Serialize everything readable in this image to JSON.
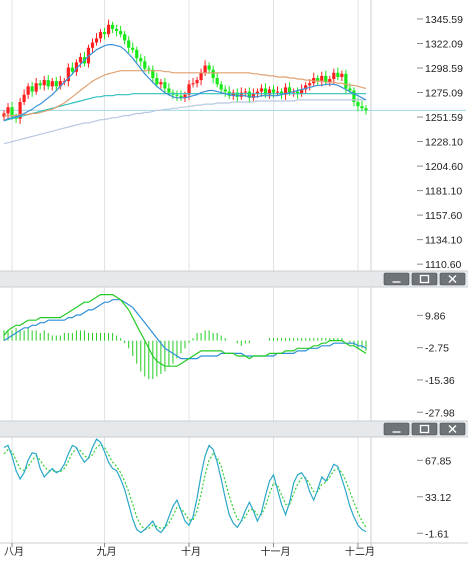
{
  "colors": {
    "up": "#ff1f1f",
    "down": "#18e818",
    "ma_fast": "#3a8fd8",
    "ma_mid": "#e0a070",
    "ma_slow": "#b8c8e0",
    "ma_long": "#30c0c0",
    "macd_dif": "#22cc22",
    "macd_dea": "#2e8fd8",
    "kdj_k": "#2aa8c8",
    "kdj_d": "#30d030",
    "grid": "#dfe3e6",
    "divider": "#c9ced2",
    "titlebar": "#e6e9ec"
  },
  "panel_buttons": [
    "minimize-icon",
    "restore-icon",
    "close-icon"
  ],
  "chart_data": [
    {
      "type": "candlestick",
      "ylim": [
        1105,
        1358
      ],
      "y_ticks": [
        "1345.59",
        "1322.09",
        "1298.59",
        "1275.09",
        "1251.59",
        "1228.10",
        "1204.60",
        "1181.10",
        "1157.60",
        "1134.10",
        "1110.60"
      ],
      "y_tick_values": [
        1345.59,
        1322.09,
        1298.59,
        1275.09,
        1251.59,
        1228.1,
        1204.6,
        1181.1,
        1157.6,
        1134.1,
        1110.6
      ],
      "x_labels": [
        "八月",
        "九月",
        "十月",
        "十一月",
        "十二月"
      ],
      "x_label_index": [
        2,
        25,
        46,
        67,
        88
      ],
      "n": 91,
      "close": [
        1255,
        1261,
        1252,
        1250,
        1266,
        1273,
        1281,
        1276,
        1284,
        1282,
        1287,
        1281,
        1286,
        1281,
        1286,
        1286,
        1299,
        1295,
        1304,
        1309,
        1303,
        1318,
        1323,
        1327,
        1333,
        1331,
        1340,
        1336,
        1334,
        1331,
        1325,
        1318,
        1316,
        1308,
        1305,
        1298,
        1297,
        1289,
        1283,
        1285,
        1279,
        1275,
        1273,
        1272,
        1270,
        1273,
        1283,
        1284,
        1287,
        1294,
        1301,
        1297,
        1289,
        1283,
        1278,
        1276,
        1272,
        1275,
        1271,
        1275,
        1276,
        1270,
        1274,
        1276,
        1279,
        1273,
        1278,
        1275,
        1276,
        1273,
        1280,
        1275,
        1276,
        1274,
        1278,
        1282,
        1284,
        1289,
        1286,
        1291,
        1285,
        1288,
        1294,
        1290,
        1293,
        1279,
        1277,
        1266,
        1262,
        1260,
        1258
      ],
      "ma_fast": [
        1248,
        1250,
        1251,
        1252,
        1253,
        1255,
        1257,
        1259,
        1262,
        1264,
        1267,
        1270,
        1273,
        1277,
        1281,
        1285,
        1289,
        1293,
        1298,
        1302,
        1306,
        1310,
        1313,
        1316,
        1318,
        1320,
        1321,
        1321,
        1320,
        1319,
        1316,
        1312,
        1308,
        1303,
        1298,
        1293,
        1289,
        1285,
        1281,
        1278,
        1275,
        1273,
        1271,
        1270,
        1270,
        1270,
        1271,
        1272,
        1273,
        1275,
        1276,
        1277,
        1277,
        1276,
        1275,
        1274,
        1273,
        1272,
        1272,
        1272,
        1272,
        1271,
        1271,
        1271,
        1272,
        1272,
        1272,
        1272,
        1272,
        1273,
        1274,
        1275,
        1276,
        1277,
        1278,
        1279,
        1280,
        1281,
        1282,
        1282,
        1283,
        1283,
        1283,
        1282,
        1280,
        1278,
        1276,
        1274,
        1272,
        1270,
        1268
      ],
      "ma_mid": [
        1253,
        1253,
        1253,
        1253,
        1254,
        1254,
        1254,
        1255,
        1255,
        1256,
        1257,
        1258,
        1259,
        1261,
        1263,
        1265,
        1268,
        1271,
        1274,
        1277,
        1280,
        1283,
        1286,
        1288,
        1290,
        1292,
        1293,
        1294,
        1295,
        1296,
        1296,
        1296,
        1296,
        1296,
        1296,
        1296,
        1296,
        1296,
        1296,
        1296,
        1295,
        1295,
        1294,
        1294,
        1294,
        1294,
        1294,
        1294,
        1294,
        1294,
        1294,
        1294,
        1294,
        1294,
        1294,
        1294,
        1294,
        1294,
        1294,
        1294,
        1294,
        1294,
        1293,
        1293,
        1292,
        1292,
        1291,
        1291,
        1290,
        1290,
        1290,
        1289,
        1289,
        1288,
        1288,
        1287,
        1287,
        1286,
        1286,
        1286,
        1285,
        1285,
        1285,
        1284,
        1284,
        1283,
        1282,
        1282,
        1281,
        1280,
        1279
      ],
      "ma_slow": [
        1226,
        1227,
        1228,
        1229,
        1230,
        1231,
        1232,
        1233,
        1234,
        1235,
        1236,
        1237,
        1238,
        1239,
        1240,
        1241,
        1242,
        1243,
        1244,
        1245,
        1246,
        1246,
        1247,
        1248,
        1249,
        1249,
        1250,
        1251,
        1251,
        1252,
        1253,
        1253,
        1254,
        1255,
        1255,
        1256,
        1256,
        1257,
        1258,
        1258,
        1259,
        1259,
        1260,
        1260,
        1261,
        1261,
        1262,
        1262,
        1263,
        1263,
        1264,
        1264,
        1264,
        1265,
        1265,
        1265,
        1265,
        1266,
        1266,
        1266,
        1266,
        1266,
        1266,
        1267,
        1267,
        1267,
        1267,
        1267,
        1267,
        1267,
        1267,
        1267,
        1267,
        1268,
        1268,
        1268,
        1268,
        1268,
        1268,
        1268,
        1268,
        1268,
        1268,
        1268,
        1268,
        1268,
        1268,
        1268,
        1268,
        1268,
        1268
      ],
      "ma_long": [
        1248,
        1249,
        1250,
        1251,
        1252,
        1253,
        1254,
        1255,
        1256,
        1257,
        1258,
        1259,
        1260,
        1261,
        1262,
        1263,
        1264,
        1265,
        1266,
        1267,
        1268,
        1269,
        1270,
        1271,
        1271,
        1272,
        1272,
        1272,
        1273,
        1273,
        1273,
        1273,
        1274,
        1274,
        1274,
        1274,
        1274,
        1274,
        1274,
        1274,
        1274,
        1274,
        1274,
        1274,
        1274,
        1274,
        1274,
        1274,
        1274,
        1274,
        1274,
        1274,
        1274,
        1274,
        1274,
        1274,
        1274,
        1274,
        1274,
        1274,
        1274,
        1274,
        1274,
        1274,
        1274,
        1274,
        1274,
        1274,
        1274,
        1274,
        1274,
        1274,
        1274,
        1274,
        1274,
        1274,
        1274,
        1274,
        1274,
        1274,
        1274,
        1274,
        1274,
        1274,
        1274,
        1274,
        1274,
        1274,
        1274,
        1274,
        1274
      ],
      "last_price": 1258
    },
    {
      "type": "macd",
      "ylim": [
        -31,
        19
      ],
      "y_ticks": [
        "9.86",
        "-2.75",
        "-15.36",
        "-27.98"
      ],
      "y_tick_values": [
        9.86,
        -2.75,
        -15.36,
        -27.98
      ],
      "dif": [
        2,
        4,
        5,
        6,
        6,
        7,
        8,
        8,
        8,
        9,
        9,
        9,
        9,
        9,
        9,
        10,
        11,
        12,
        13,
        14,
        15,
        15,
        16,
        17,
        18,
        18,
        18,
        18,
        17,
        16,
        14,
        12,
        9,
        6,
        3,
        0,
        -3,
        -6,
        -8,
        -9,
        -10,
        -10,
        -10,
        -10,
        -9,
        -8,
        -7,
        -6,
        -5,
        -4,
        -4,
        -4,
        -4,
        -4,
        -4,
        -5,
        -5,
        -5,
        -6,
        -6,
        -6,
        -7,
        -6,
        -6,
        -6,
        -6,
        -5,
        -5,
        -5,
        -5,
        -4,
        -4,
        -4,
        -3,
        -3,
        -3,
        -3,
        -2,
        -2,
        -1,
        -1,
        0,
        0,
        0,
        0,
        -1,
        -2,
        -2,
        -3,
        -4,
        -5
      ],
      "dea": [
        0,
        1,
        2,
        3,
        4,
        5,
        5,
        6,
        6,
        7,
        7,
        8,
        8,
        8,
        8,
        8,
        9,
        9,
        10,
        10,
        11,
        12,
        12,
        13,
        14,
        15,
        15,
        16,
        16,
        16,
        15,
        14,
        13,
        11,
        9,
        7,
        5,
        3,
        1,
        -1,
        -3,
        -4,
        -5,
        -6,
        -7,
        -7,
        -7,
        -7,
        -7,
        -6,
        -6,
        -6,
        -6,
        -6,
        -5,
        -5,
        -5,
        -5,
        -5,
        -5,
        -6,
        -6,
        -6,
        -6,
        -6,
        -6,
        -6,
        -6,
        -5,
        -5,
        -5,
        -5,
        -5,
        -4,
        -4,
        -4,
        -3,
        -3,
        -3,
        -2,
        -2,
        -2,
        -1,
        -1,
        -1,
        -1,
        -1,
        -1,
        -2,
        -2,
        -3
      ],
      "hist": [
        4,
        4,
        4,
        5,
        4,
        4,
        5,
        4,
        4,
        3,
        4,
        3,
        2,
        2,
        2,
        3,
        3,
        3,
        4,
        4,
        4,
        3,
        3,
        3,
        3,
        3,
        3,
        3,
        2,
        1,
        -1,
        -3,
        -6,
        -9,
        -12,
        -14,
        -15,
        -15,
        -14,
        -13,
        -12,
        -10,
        -9,
        -7,
        -5,
        -3,
        -1,
        1,
        3,
        3,
        4,
        4,
        3,
        3,
        2,
        1,
        0,
        0,
        -1,
        -2,
        -1,
        -1,
        0,
        0,
        0,
        0,
        1,
        1,
        1,
        1,
        1,
        1,
        1,
        1,
        1,
        1,
        1,
        1,
        1,
        1,
        1,
        1,
        1,
        1,
        1,
        0,
        -1,
        -2,
        -3,
        -3,
        -4
      ]
    },
    {
      "type": "kdj",
      "ylim": [
        -8,
        90
      ],
      "y_ticks": [
        "67.85",
        "33.12",
        "-1.61"
      ],
      "y_tick_values": [
        67.85,
        33.12,
        -1.61
      ],
      "k": [
        80,
        82,
        72,
        58,
        50,
        56,
        68,
        75,
        74,
        60,
        52,
        56,
        60,
        56,
        58,
        64,
        74,
        82,
        80,
        72,
        66,
        70,
        80,
        88,
        85,
        76,
        66,
        60,
        58,
        50,
        40,
        26,
        12,
        2,
        -1,
        2,
        6,
        10,
        2,
        -1,
        4,
        14,
        24,
        30,
        20,
        10,
        6,
        14,
        32,
        54,
        72,
        82,
        78,
        66,
        50,
        32,
        16,
        8,
        4,
        10,
        20,
        28,
        20,
        10,
        18,
        34,
        48,
        54,
        40,
        26,
        16,
        28,
        46,
        54,
        56,
        50,
        38,
        30,
        40,
        52,
        48,
        56,
        64,
        62,
        50,
        38,
        24,
        14,
        6,
        2,
        0
      ],
      "d": [
        74,
        78,
        76,
        68,
        60,
        58,
        62,
        68,
        72,
        68,
        62,
        58,
        58,
        57,
        57,
        60,
        67,
        75,
        79,
        77,
        72,
        70,
        73,
        80,
        83,
        80,
        73,
        66,
        62,
        56,
        48,
        38,
        26,
        14,
        6,
        2,
        3,
        6,
        5,
        3,
        4,
        8,
        15,
        23,
        22,
        17,
        11,
        11,
        20,
        36,
        54,
        68,
        74,
        70,
        62,
        48,
        34,
        22,
        12,
        10,
        14,
        21,
        21,
        16,
        16,
        24,
        36,
        46,
        44,
        35,
        26,
        26,
        36,
        45,
        51,
        51,
        45,
        38,
        38,
        45,
        47,
        52,
        58,
        60,
        56,
        48,
        38,
        28,
        18,
        10,
        4
      ]
    }
  ]
}
